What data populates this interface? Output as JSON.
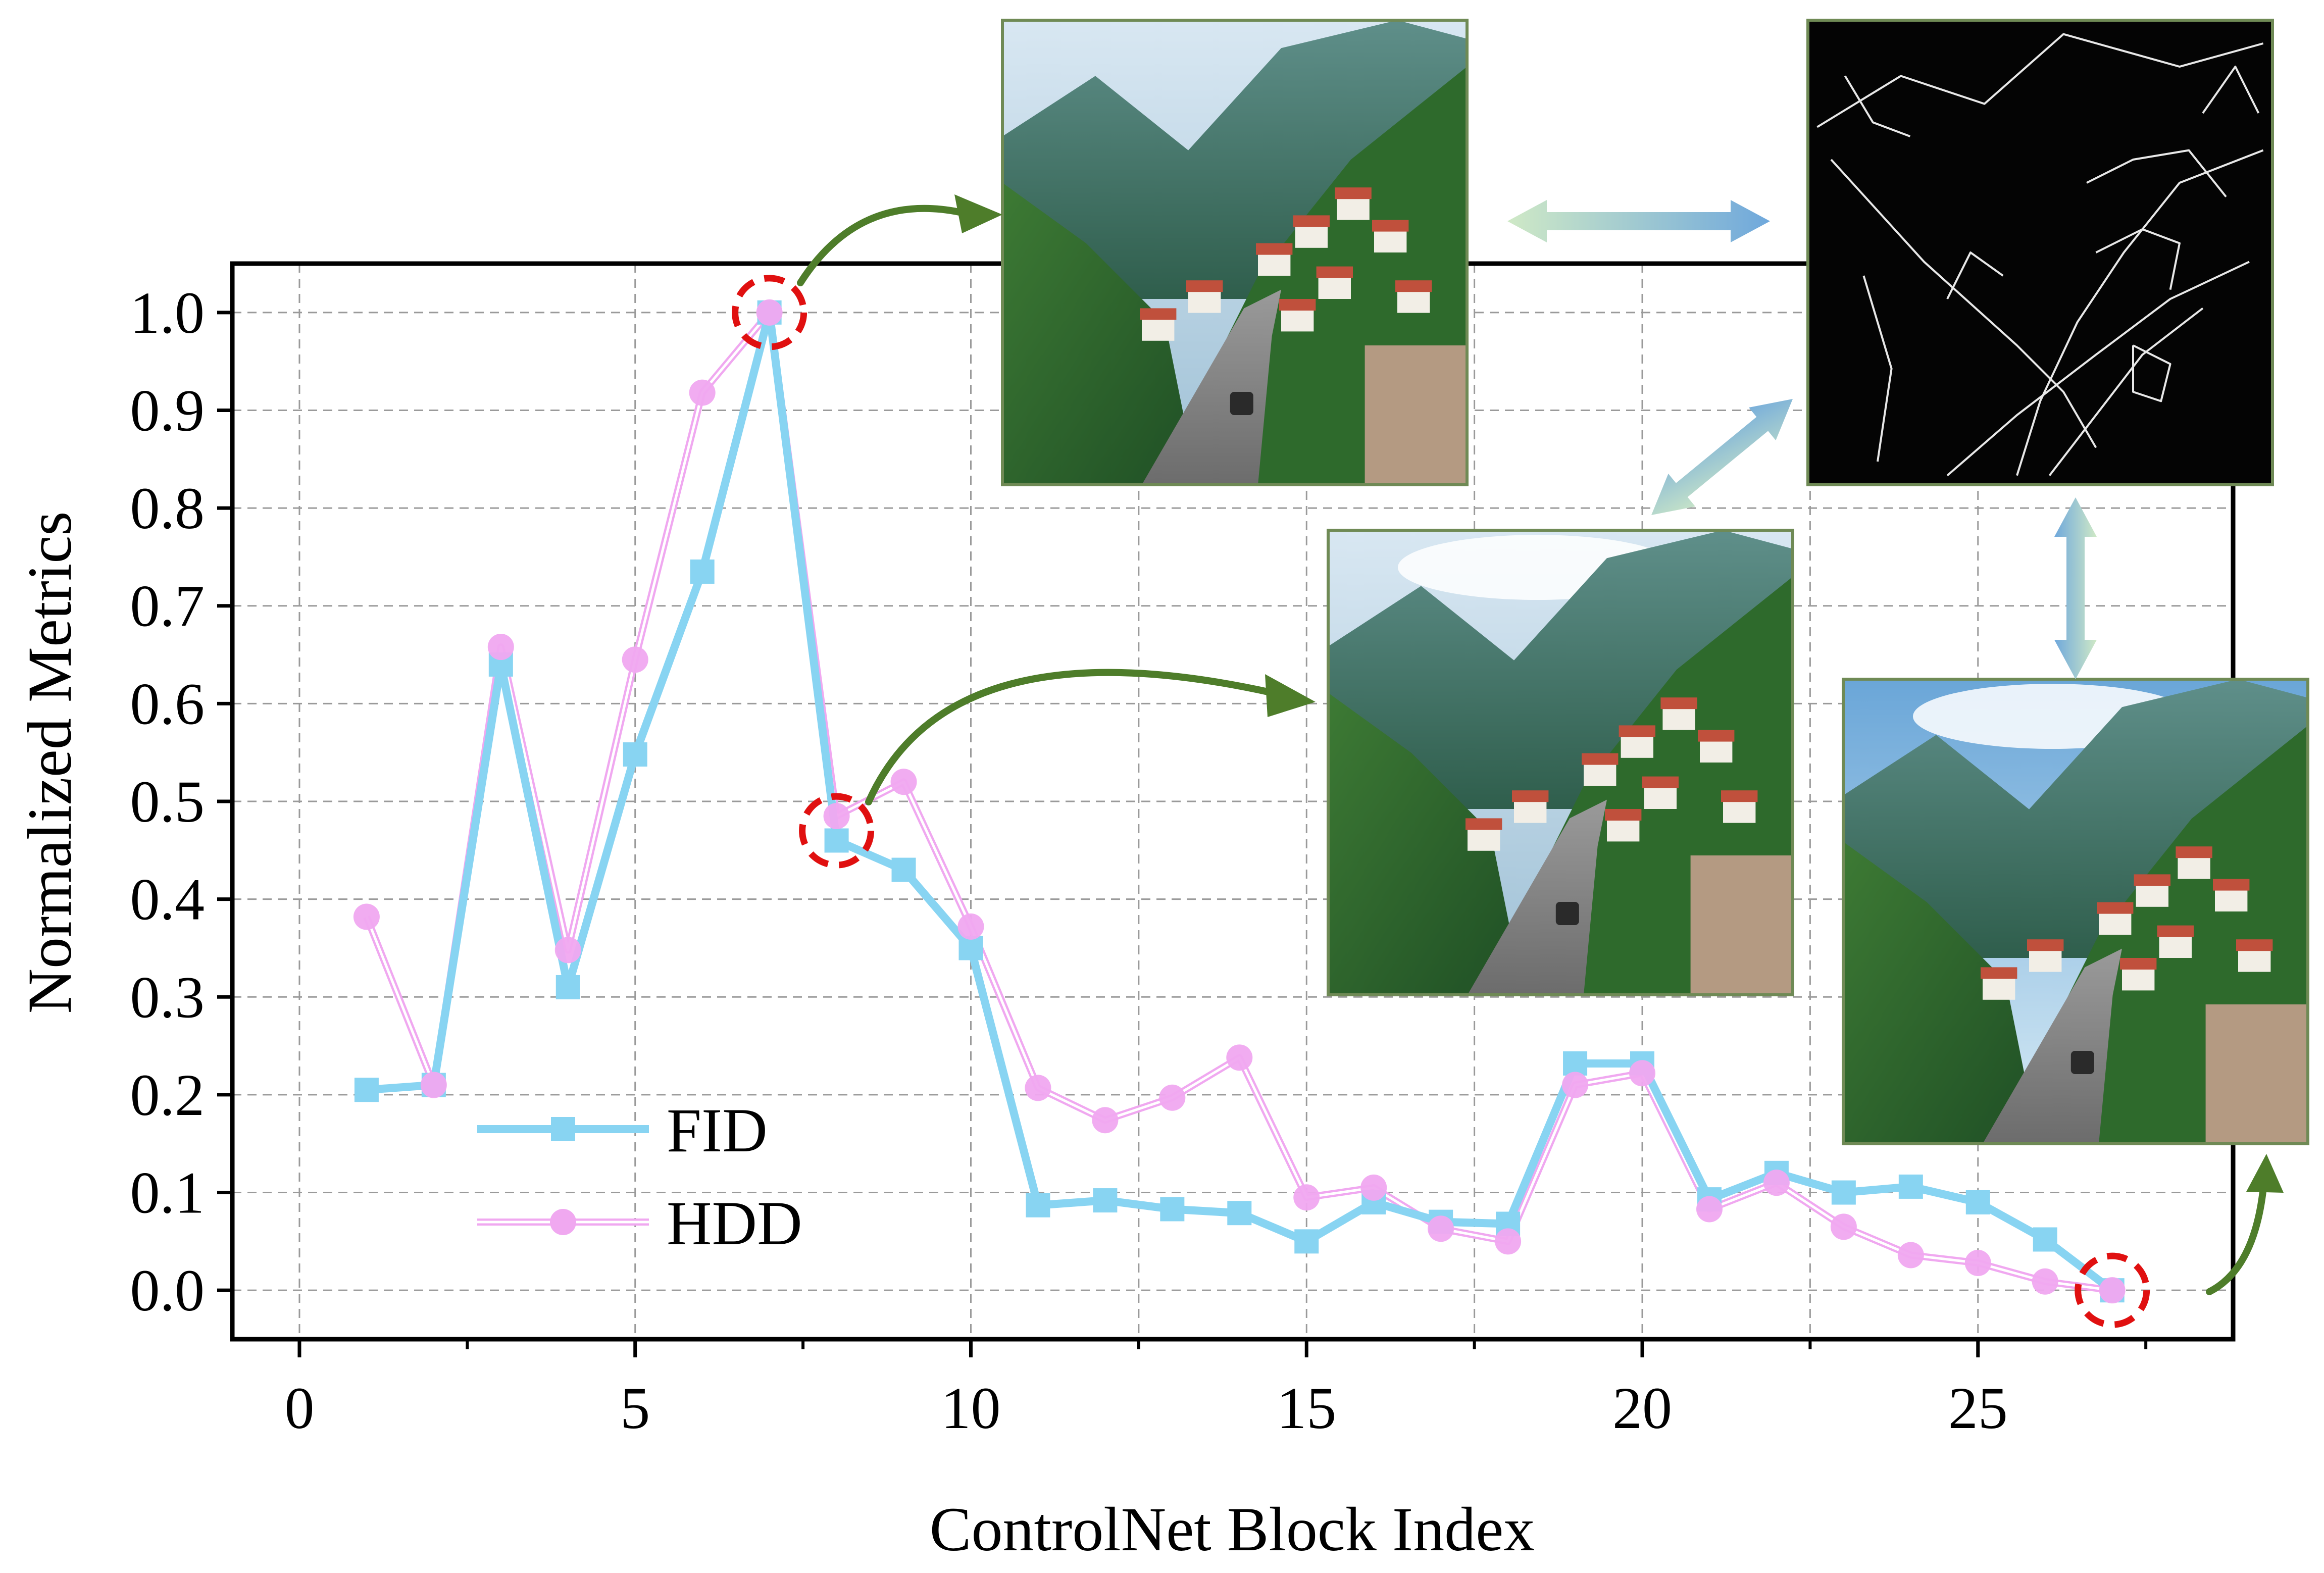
{
  "chart_data": {
    "type": "line",
    "xlabel": "ControlNet Block Index",
    "ylabel": "Normalized Metrics",
    "xlim": [
      -1,
      28.8
    ],
    "ylim": [
      -0.05,
      1.05
    ],
    "xticks": [
      0,
      5,
      10,
      15,
      20,
      25
    ],
    "xtick_labels": [
      "0",
      "5",
      "10",
      "15",
      "20",
      "25"
    ],
    "yticks": [
      0.0,
      0.1,
      0.2,
      0.3,
      0.4,
      0.5,
      0.6,
      0.7,
      0.8,
      0.9,
      1.0
    ],
    "ytick_labels": [
      "0.0",
      "0.1",
      "0.2",
      "0.3",
      "0.4",
      "0.5",
      "0.6",
      "0.7",
      "0.8",
      "0.9",
      "1.0"
    ],
    "grid": true,
    "legend_position": "bottom-left",
    "x": [
      1,
      2,
      3,
      4,
      5,
      6,
      7,
      8,
      9,
      10,
      11,
      12,
      13,
      14,
      15,
      16,
      17,
      18,
      19,
      20,
      21,
      22,
      23,
      24,
      25,
      26,
      27
    ],
    "series": [
      {
        "name": "FID",
        "marker": "square",
        "color": "#88d4f2",
        "values": [
          0.205,
          0.21,
          0.64,
          0.31,
          0.548,
          0.735,
          1.0,
          0.46,
          0.43,
          0.35,
          0.087,
          0.092,
          0.083,
          0.079,
          0.05,
          0.09,
          0.07,
          0.068,
          0.232,
          0.232,
          0.093,
          0.12,
          0.1,
          0.106,
          0.09,
          0.052,
          0.0
        ]
      },
      {
        "name": "HDD",
        "marker": "circle",
        "color": "#f0a8f0",
        "values": [
          0.382,
          0.21,
          0.658,
          0.348,
          0.645,
          0.918,
          1.0,
          0.485,
          0.52,
          0.372,
          0.207,
          0.174,
          0.197,
          0.238,
          0.095,
          0.105,
          0.063,
          0.05,
          0.21,
          0.222,
          0.083,
          0.11,
          0.065,
          0.036,
          0.028,
          0.009,
          0.0
        ]
      }
    ],
    "highlighted_points": [
      {
        "x": 7,
        "y": 1.0
      },
      {
        "x": 8,
        "y": 0.47
      },
      {
        "x": 27,
        "y": 0.0
      }
    ],
    "inset_images": [
      {
        "name": "generated-image-block-7",
        "link_to_x": 7,
        "scene": "valley-road-generated",
        "variant": "warped"
      },
      {
        "name": "generated-image-block-8",
        "link_to_x": 8,
        "scene": "valley-road-generated",
        "variant": "clear"
      },
      {
        "name": "edge-map-condition",
        "scene": "edge-map",
        "variant": "edges"
      },
      {
        "name": "generated-image-block-27",
        "link_to_x": 27,
        "scene": "valley-road-generated",
        "variant": "sunny"
      }
    ],
    "annotation_colors": {
      "highlight_ring": "#e01010",
      "link_arrow": "#4e7d2a",
      "compare_arrow_start": "#c9e6c0",
      "compare_arrow_end": "#7ab0de"
    }
  }
}
